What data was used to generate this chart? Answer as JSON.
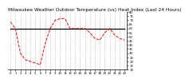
{
  "title": "Milwaukee Weather Outdoor Temperature (vs) Heat Index (Last 24 Hours)",
  "title_fontsize": 4.2,
  "bg_color": "#ffffff",
  "grid_color": "#999999",
  "hours": [
    0,
    1,
    2,
    3,
    4,
    5,
    6,
    7,
    8,
    9,
    10,
    11,
    12,
    13,
    14,
    15,
    16,
    17,
    18,
    19,
    20,
    21,
    22,
    23
  ],
  "temp_values": [
    68,
    60,
    30,
    22,
    20,
    18,
    16,
    42,
    60,
    70,
    72,
    72,
    60,
    60,
    60,
    60,
    55,
    48,
    46,
    55,
    60,
    52,
    48,
    46
  ],
  "heat_values": [
    60,
    60,
    60,
    60,
    60,
    60,
    60,
    60,
    60,
    60,
    60,
    60,
    60,
    60,
    60,
    60,
    60,
    60,
    60,
    60,
    60,
    60,
    60,
    60
  ],
  "temp_color": "#ff0000",
  "heat_color": "#000000",
  "temp_linestyle": "--",
  "heat_linestyle": "-",
  "temp_linewidth": 0.7,
  "heat_linewidth": 0.9,
  "ylim_min": 10,
  "ylim_max": 80,
  "tick_fontsize": 2.8,
  "ytick_values": [
    80,
    75,
    70,
    65,
    60,
    55,
    50,
    45,
    40,
    35,
    30,
    25,
    20,
    15,
    10
  ],
  "xtick_positions": [
    0,
    1,
    2,
    3,
    4,
    5,
    6,
    7,
    8,
    9,
    10,
    11,
    12,
    13,
    14,
    15,
    16,
    17,
    18,
    19,
    20,
    21,
    22,
    23
  ],
  "xtick_labels": [
    "0",
    "1",
    "2",
    "3",
    "4",
    "5",
    "6",
    "7",
    "8",
    "9",
    "10",
    "11",
    "12",
    "13",
    "14",
    "15",
    "16",
    "17",
    "18",
    "19",
    "20",
    "21",
    "22",
    "23"
  ],
  "major_xtick_positions": [
    0,
    3,
    6,
    9,
    12,
    15,
    18,
    21,
    23
  ]
}
